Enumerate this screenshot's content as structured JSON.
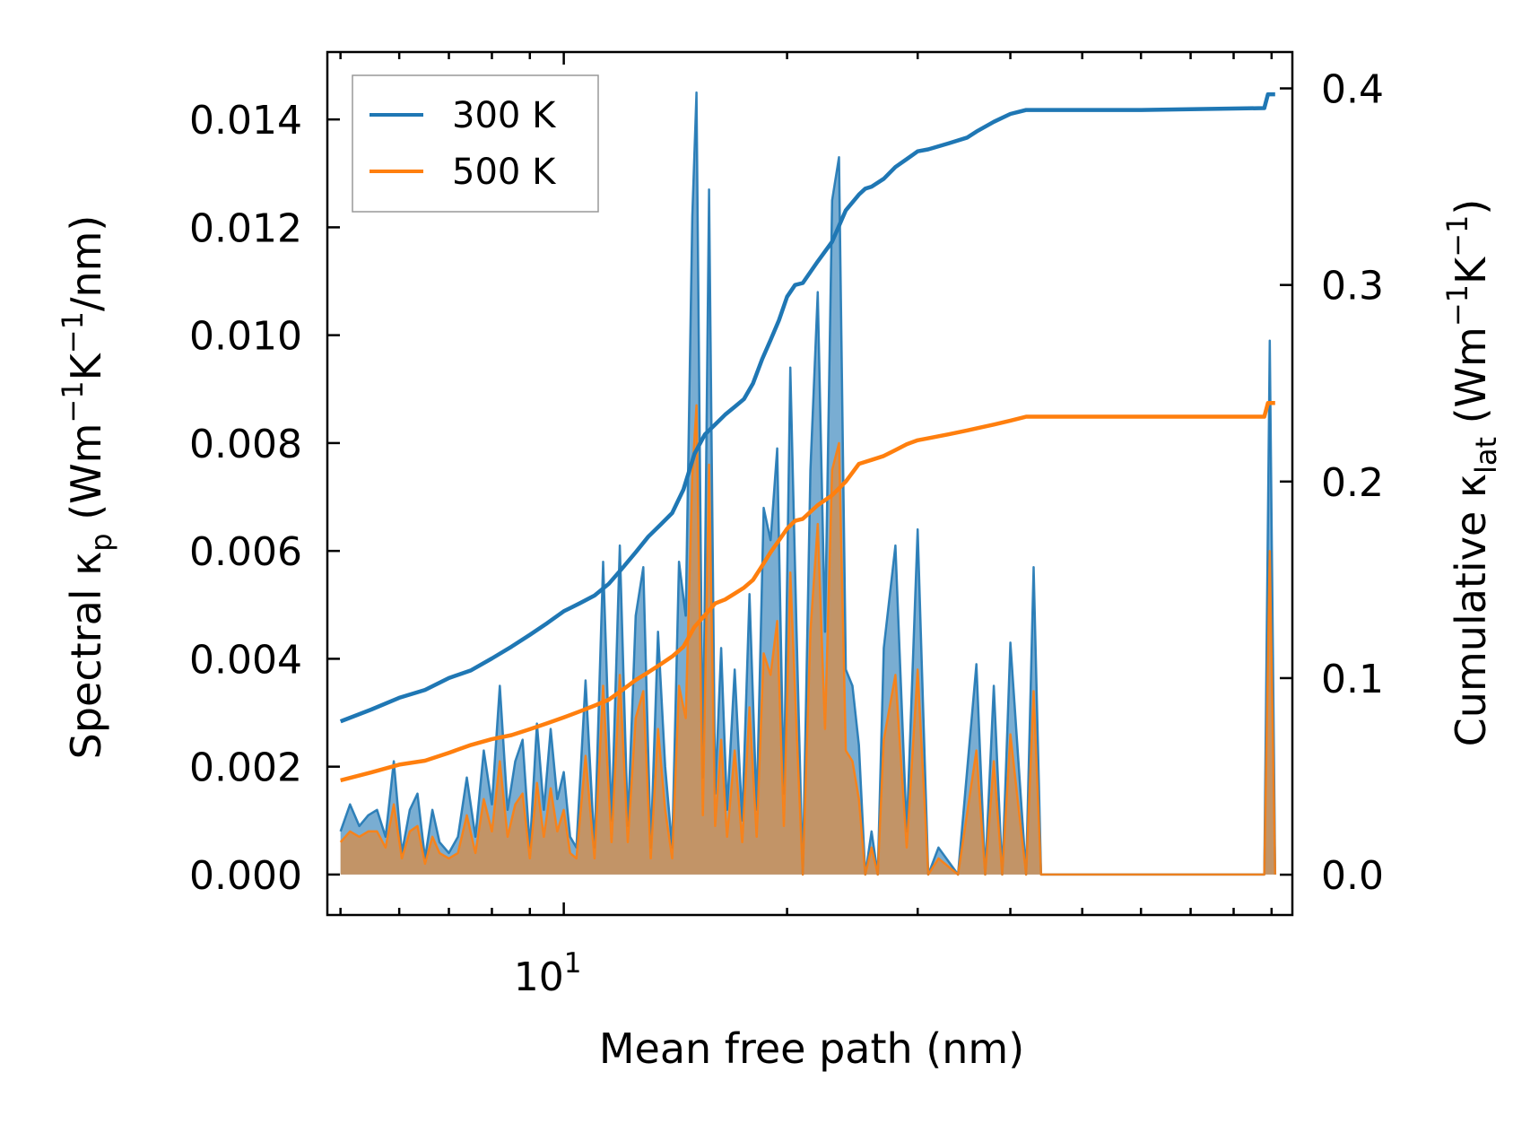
{
  "chart_data": {
    "type": "line",
    "x_scale": "log",
    "xlabel": "Mean free path (nm)",
    "ylabel_left": "Spectral κp (Wm−1K−1/nm)",
    "ylabel_left_parts": [
      "Spectral κ",
      "p",
      " (Wm",
      "−1",
      "K",
      "−1",
      "/nm)"
    ],
    "ylabel_right": "Cumulative κlat (Wm−1K−1)",
    "ylabel_right_parts": [
      "Cumulative κ",
      "lat",
      " (Wm",
      "−1",
      "K",
      "−1",
      ")"
    ],
    "xlim": [
      4.8,
      96
    ],
    "ylim_left": [
      -0.00075,
      0.01525
    ],
    "ylim_right": [
      -0.0205,
      0.4185
    ],
    "x_tick_labels": [
      {
        "value": 10,
        "label": "10",
        "exp": "1"
      }
    ],
    "y_ticks_left": [
      {
        "value": 0.0,
        "label": "0.000"
      },
      {
        "value": 0.002,
        "label": "0.002"
      },
      {
        "value": 0.004,
        "label": "0.004"
      },
      {
        "value": 0.006,
        "label": "0.006"
      },
      {
        "value": 0.008,
        "label": "0.008"
      },
      {
        "value": 0.01,
        "label": "0.010"
      },
      {
        "value": 0.012,
        "label": "0.012"
      },
      {
        "value": 0.014,
        "label": "0.014"
      }
    ],
    "y_ticks_right": [
      {
        "value": 0.0,
        "label": "0.0"
      },
      {
        "value": 0.1,
        "label": "0.1"
      },
      {
        "value": 0.2,
        "label": "0.2"
      },
      {
        "value": 0.3,
        "label": "0.3"
      },
      {
        "value": 0.4,
        "label": "0.4"
      }
    ],
    "legend": {
      "position": "top-left",
      "entries": [
        {
          "name": "300 K",
          "color": "#1f77b4"
        },
        {
          "name": "500 K",
          "color": "#ff7f0e"
        }
      ]
    },
    "series": [
      {
        "name": "300 K",
        "color": "#1f77b4",
        "kind": "spectral",
        "x": [
          5.0,
          5.15,
          5.3,
          5.45,
          5.6,
          5.75,
          5.9,
          6.05,
          6.2,
          6.35,
          6.5,
          6.65,
          6.8,
          7.0,
          7.2,
          7.4,
          7.6,
          7.8,
          8.0,
          8.2,
          8.4,
          8.6,
          8.8,
          9.0,
          9.2,
          9.4,
          9.6,
          9.8,
          10.0,
          10.2,
          10.4,
          10.7,
          11.0,
          11.3,
          11.6,
          11.9,
          12.2,
          12.5,
          12.8,
          13.1,
          13.4,
          13.7,
          14.0,
          14.3,
          14.6,
          14.9,
          15.1,
          15.4,
          15.7,
          16.0,
          16.3,
          16.6,
          17.0,
          17.4,
          17.8,
          18.2,
          18.6,
          19.0,
          19.4,
          19.8,
          20.2,
          20.6,
          21.0,
          21.5,
          22.0,
          22.5,
          23.0,
          23.5,
          24.0,
          24.5,
          25.0,
          25.5,
          26.0,
          26.5,
          27.0,
          28.0,
          29.0,
          30.0,
          31.0,
          32.0,
          34.0,
          36.0,
          37.0,
          38.0,
          39.0,
          40.0,
          42.0,
          43.0,
          44.0,
          88.0,
          89.5,
          91.0
        ],
        "values": [
          0.0008,
          0.0013,
          0.0009,
          0.0011,
          0.0012,
          0.0007,
          0.0021,
          0.0004,
          0.0012,
          0.0015,
          0.0003,
          0.0012,
          0.0006,
          0.0004,
          0.0007,
          0.0018,
          0.0007,
          0.0023,
          0.0013,
          0.0035,
          0.0012,
          0.0021,
          0.0025,
          0.0005,
          0.0028,
          0.0012,
          0.0027,
          0.0014,
          0.0019,
          0.0007,
          0.0005,
          0.0036,
          0.0005,
          0.0058,
          0.001,
          0.0061,
          0.0009,
          0.0048,
          0.0057,
          0.0005,
          0.0045,
          0.002,
          0.0005,
          0.0058,
          0.0048,
          0.0122,
          0.0145,
          0.0018,
          0.0127,
          0.0015,
          0.0042,
          0.0012,
          0.0038,
          0.001,
          0.0052,
          0.0012,
          0.0068,
          0.0062,
          0.0079,
          0.0015,
          0.0094,
          0.0045,
          0.0,
          0.0075,
          0.0108,
          0.0045,
          0.0125,
          0.0133,
          0.0038,
          0.0035,
          0.0024,
          0.0,
          0.0008,
          0.0,
          0.0042,
          0.0061,
          0.0008,
          0.0064,
          0.0,
          0.0005,
          0.0,
          0.0039,
          0.0,
          0.0035,
          0.0,
          0.0043,
          0.0,
          0.0057,
          0.0,
          0.0,
          0.0099,
          0.0
        ]
      },
      {
        "name": "500 K",
        "color": "#ff7f0e",
        "kind": "spectral",
        "x": [
          5.0,
          5.15,
          5.3,
          5.45,
          5.6,
          5.75,
          5.9,
          6.05,
          6.2,
          6.35,
          6.5,
          6.65,
          6.8,
          7.0,
          7.2,
          7.4,
          7.6,
          7.8,
          8.0,
          8.2,
          8.4,
          8.6,
          8.8,
          9.0,
          9.2,
          9.4,
          9.6,
          9.8,
          10.0,
          10.2,
          10.4,
          10.7,
          11.0,
          11.3,
          11.6,
          11.9,
          12.2,
          12.5,
          12.8,
          13.1,
          13.4,
          13.7,
          14.0,
          14.3,
          14.6,
          14.9,
          15.1,
          15.4,
          15.7,
          16.0,
          16.3,
          16.6,
          17.0,
          17.4,
          17.8,
          18.2,
          18.6,
          19.0,
          19.4,
          19.8,
          20.2,
          20.6,
          21.0,
          21.5,
          22.0,
          22.5,
          23.0,
          23.5,
          24.0,
          24.5,
          25.0,
          25.5,
          26.0,
          26.5,
          27.0,
          28.0,
          29.0,
          30.0,
          31.0,
          32.0,
          34.0,
          36.0,
          37.0,
          38.0,
          39.0,
          40.0,
          42.0,
          43.0,
          44.0,
          88.0,
          89.5,
          91.0
        ],
        "values": [
          0.0006,
          0.0008,
          0.0007,
          0.0008,
          0.0008,
          0.0005,
          0.0013,
          0.0003,
          0.0008,
          0.0009,
          0.0002,
          0.0007,
          0.0004,
          0.0003,
          0.0004,
          0.0011,
          0.0004,
          0.0014,
          0.0008,
          0.0021,
          0.0007,
          0.0013,
          0.0015,
          0.0003,
          0.0017,
          0.0007,
          0.0016,
          0.0008,
          0.0012,
          0.0004,
          0.0003,
          0.0022,
          0.0003,
          0.0035,
          0.0006,
          0.0037,
          0.0006,
          0.0029,
          0.0034,
          0.0003,
          0.0027,
          0.0012,
          0.0003,
          0.0035,
          0.0029,
          0.0074,
          0.0087,
          0.0011,
          0.0076,
          0.0009,
          0.0025,
          0.0007,
          0.0023,
          0.0006,
          0.0031,
          0.0007,
          0.0041,
          0.0037,
          0.0047,
          0.0009,
          0.0056,
          0.0027,
          0.0,
          0.0045,
          0.0065,
          0.0027,
          0.0075,
          0.008,
          0.0023,
          0.0021,
          0.0014,
          0.0,
          0.0005,
          0.0,
          0.0025,
          0.0037,
          0.0005,
          0.0038,
          0.0,
          0.0003,
          0.0,
          0.0023,
          0.0,
          0.0021,
          0.0,
          0.0026,
          0.0,
          0.0034,
          0.0,
          0.0,
          0.006,
          0.0
        ]
      },
      {
        "name": "300 K",
        "color": "#1f77b4",
        "kind": "cumulative",
        "x": [
          5.0,
          5.5,
          6.0,
          6.5,
          7.0,
          7.5,
          8.0,
          8.5,
          9.0,
          9.5,
          10.0,
          10.5,
          11.0,
          11.5,
          12.0,
          12.5,
          13.0,
          13.5,
          14.0,
          14.5,
          15.0,
          15.5,
          16.0,
          16.5,
          17.0,
          17.5,
          18.0,
          18.5,
          19.0,
          19.5,
          20.0,
          20.5,
          21.0,
          22.0,
          23.0,
          24.0,
          25.0,
          25.5,
          26.0,
          27.0,
          28.0,
          29.0,
          30.0,
          31.0,
          33.0,
          35.0,
          36.0,
          38.0,
          40.0,
          42.0,
          44.0,
          60.0,
          88.0,
          89.0,
          91.0
        ],
        "values": [
          0.078,
          0.084,
          0.09,
          0.094,
          0.1,
          0.104,
          0.11,
          0.116,
          0.122,
          0.128,
          0.134,
          0.138,
          0.142,
          0.148,
          0.156,
          0.164,
          0.172,
          0.178,
          0.184,
          0.196,
          0.214,
          0.224,
          0.229,
          0.234,
          0.238,
          0.242,
          0.25,
          0.262,
          0.272,
          0.282,
          0.294,
          0.3,
          0.301,
          0.312,
          0.322,
          0.338,
          0.346,
          0.349,
          0.35,
          0.354,
          0.36,
          0.364,
          0.368,
          0.369,
          0.372,
          0.375,
          0.378,
          0.383,
          0.387,
          0.389,
          0.389,
          0.389,
          0.39,
          0.397,
          0.397
        ]
      },
      {
        "name": "500 K",
        "color": "#ff7f0e",
        "kind": "cumulative",
        "x": [
          5.0,
          5.5,
          6.0,
          6.5,
          7.0,
          7.5,
          8.0,
          8.5,
          9.0,
          9.5,
          10.0,
          10.5,
          11.0,
          11.5,
          12.0,
          12.5,
          13.0,
          13.5,
          14.0,
          14.5,
          15.0,
          15.5,
          16.0,
          16.5,
          17.0,
          17.5,
          18.0,
          18.5,
          19.0,
          19.5,
          20.0,
          20.5,
          21.0,
          22.0,
          23.0,
          24.0,
          25.0,
          25.5,
          26.0,
          27.0,
          28.0,
          29.0,
          30.0,
          31.0,
          33.0,
          35.0,
          36.0,
          38.0,
          40.0,
          42.0,
          44.0,
          60.0,
          88.0,
          89.0,
          91.0
        ],
        "values": [
          0.048,
          0.052,
          0.056,
          0.058,
          0.062,
          0.066,
          0.069,
          0.071,
          0.074,
          0.077,
          0.08,
          0.083,
          0.086,
          0.089,
          0.094,
          0.099,
          0.103,
          0.107,
          0.111,
          0.116,
          0.126,
          0.132,
          0.138,
          0.14,
          0.143,
          0.146,
          0.15,
          0.157,
          0.164,
          0.17,
          0.176,
          0.18,
          0.181,
          0.188,
          0.193,
          0.2,
          0.209,
          0.21,
          0.211,
          0.213,
          0.216,
          0.219,
          0.221,
          0.222,
          0.224,
          0.226,
          0.227,
          0.229,
          0.231,
          0.233,
          0.233,
          0.233,
          0.233,
          0.24,
          0.24
        ]
      }
    ]
  }
}
